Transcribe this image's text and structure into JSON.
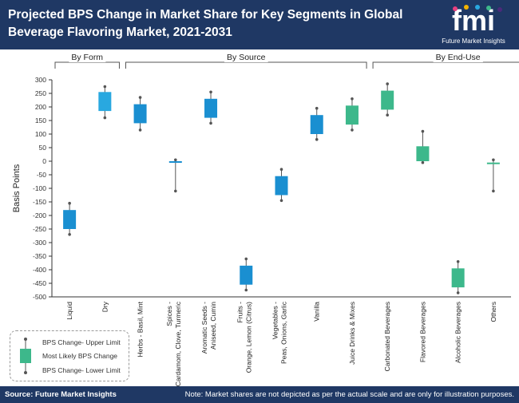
{
  "header": {
    "title": "Projected BPS Change in Market Share for Key Segments in Global Beverage Flavoring Market, 2021-2031",
    "logo_text": "fmi",
    "logo_subtitle": "Future Market Insights"
  },
  "footer": {
    "source": "Source: Future Market Insights",
    "note": "Note: Market shares are not depicted as per the actual scale and are only for illustration purposes."
  },
  "legend": {
    "upper": "BPS Change- Upper Limit",
    "likely": "Most Likely BPS Change",
    "lower": "BPS Change- Lower Limit"
  },
  "colors": {
    "navy": "#1f3864",
    "pink": "#e8407f",
    "yellow": "#f5b400",
    "blue": "#1a8fd1",
    "green": "#3db88b",
    "sky": "#29a8e0",
    "purple": "#4b2a7b",
    "teal": "#2bb5a0"
  },
  "chart_data": {
    "type": "boxplot",
    "ylabel": "Basis Points",
    "ylim": [
      -500,
      300
    ],
    "yticks": [
      300,
      250,
      200,
      150,
      100,
      50,
      0,
      -50,
      -100,
      -150,
      -200,
      -250,
      -300,
      -350,
      -400,
      -450,
      -500
    ],
    "groups": [
      {
        "name": "By Form",
        "start": 0,
        "end": 1
      },
      {
        "name": "By Source",
        "start": 2,
        "end": 8
      },
      {
        "name": "By End-Use",
        "start": 9,
        "end": 13
      }
    ],
    "categories": [
      "Liquid",
      "Dry",
      "Herbs - Basil, Mint",
      "Spices - Cardamom, Clove, Turmeric",
      "Aromatic Seeds - Aniseed, Cumin",
      "Fruits - Orange, Lemon (Citrus)",
      "Vegetables - Peas, Onions, Garlic",
      "Vanilla",
      "Juice Drinks & Mixes",
      "Carbonated Beverages",
      "Flavored Beverages",
      "Alcoholic Beverages",
      "Others"
    ],
    "series": [
      {
        "low": -270,
        "q1": -250,
        "q3": -180,
        "high": -155,
        "color": "#1a8fd1"
      },
      {
        "low": 160,
        "q1": 185,
        "q3": 255,
        "high": 275,
        "color": "#29a8e0"
      },
      {
        "low": 115,
        "q1": 140,
        "q3": 210,
        "high": 235,
        "color": "#1a8fd1"
      },
      {
        "low": -110,
        "q1": -5,
        "q3": 0,
        "high": 5,
        "color": "#1a8fd1"
      },
      {
        "low": 140,
        "q1": 160,
        "q3": 230,
        "high": 255,
        "color": "#1a8fd1"
      },
      {
        "low": -475,
        "q1": -455,
        "q3": -385,
        "high": -360,
        "color": "#1a8fd1"
      },
      {
        "low": -145,
        "q1": -125,
        "q3": -55,
        "high": -30,
        "color": "#1a8fd1"
      },
      {
        "low": 80,
        "q1": 100,
        "q3": 170,
        "high": 195,
        "color": "#1a8fd1"
      },
      {
        "low": 115,
        "q1": 135,
        "q3": 205,
        "high": 230,
        "color": "#3db88b"
      },
      {
        "low": 170,
        "q1": 190,
        "q3": 260,
        "high": 285,
        "color": "#3db88b"
      },
      {
        "low": -5,
        "q1": 0,
        "q3": 55,
        "high": 110,
        "color": "#3db88b"
      },
      {
        "low": -485,
        "q1": -465,
        "q3": -395,
        "high": -370,
        "color": "#3db88b"
      },
      {
        "low": -110,
        "q1": -10,
        "q3": -5,
        "high": 5,
        "color": "#3db88b"
      }
    ]
  }
}
